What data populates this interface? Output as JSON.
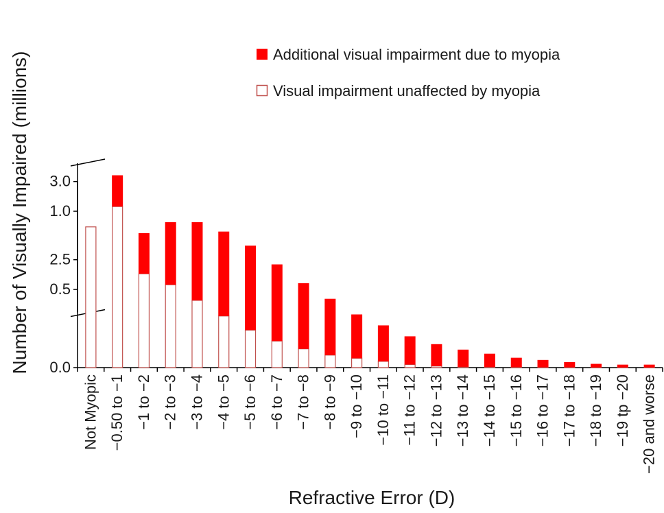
{
  "chart_data": {
    "type": "bar",
    "stacked": true,
    "y_axis_break": true,
    "xlabel": "Refractive Error (D)",
    "ylabel": "Number of Visually Impaired (millions)",
    "y_ticks": [
      "0.0",
      "0.5",
      "1.0",
      "2.5",
      "3.0"
    ],
    "categories": [
      "Not Myopic",
      "−0.50 to −1",
      "−1 to −2",
      "−2 to −3",
      "−3 to −4",
      "−4 to −5",
      "−5 to −6",
      "−6 to −7",
      "−7 to −8",
      "−8 to −9",
      "−9 to −10",
      "−10 to −11",
      "−11 to −12",
      "−12 to −13",
      "−13 to −14",
      "−14 to −15",
      "−15 to −16",
      "−16 to −17",
      "−17 to −18",
      "−18 to −19",
      "−19 tp −20",
      "−20 and worse"
    ],
    "series": [
      {
        "name": "Visual impairment unaffected by myopia",
        "fill": "#ffffff",
        "stroke": "#c0504d",
        "values": [
          2.71,
          1.03,
          0.6,
          0.53,
          0.43,
          0.33,
          0.24,
          0.17,
          0.12,
          0.08,
          0.06,
          0.04,
          0.02,
          0.01,
          0.005,
          0.004,
          0.003,
          0.002,
          0.002,
          0.001,
          0.001,
          0.001
        ]
      },
      {
        "name": "Additional visual impairment due to myopia",
        "fill": "#ff0000",
        "stroke": "#ff0000",
        "values": [
          0,
          0.2,
          0.26,
          0.4,
          0.5,
          0.54,
          0.54,
          0.49,
          0.42,
          0.36,
          0.28,
          0.23,
          0.18,
          0.14,
          0.11,
          0.085,
          0.06,
          0.047,
          0.033,
          0.023,
          0.018,
          0.018
        ]
      }
    ],
    "legend_position": "top-right",
    "legend_order": [
      "Additional visual impairment due to myopia",
      "Visual impairment unaffected by myopia"
    ]
  }
}
